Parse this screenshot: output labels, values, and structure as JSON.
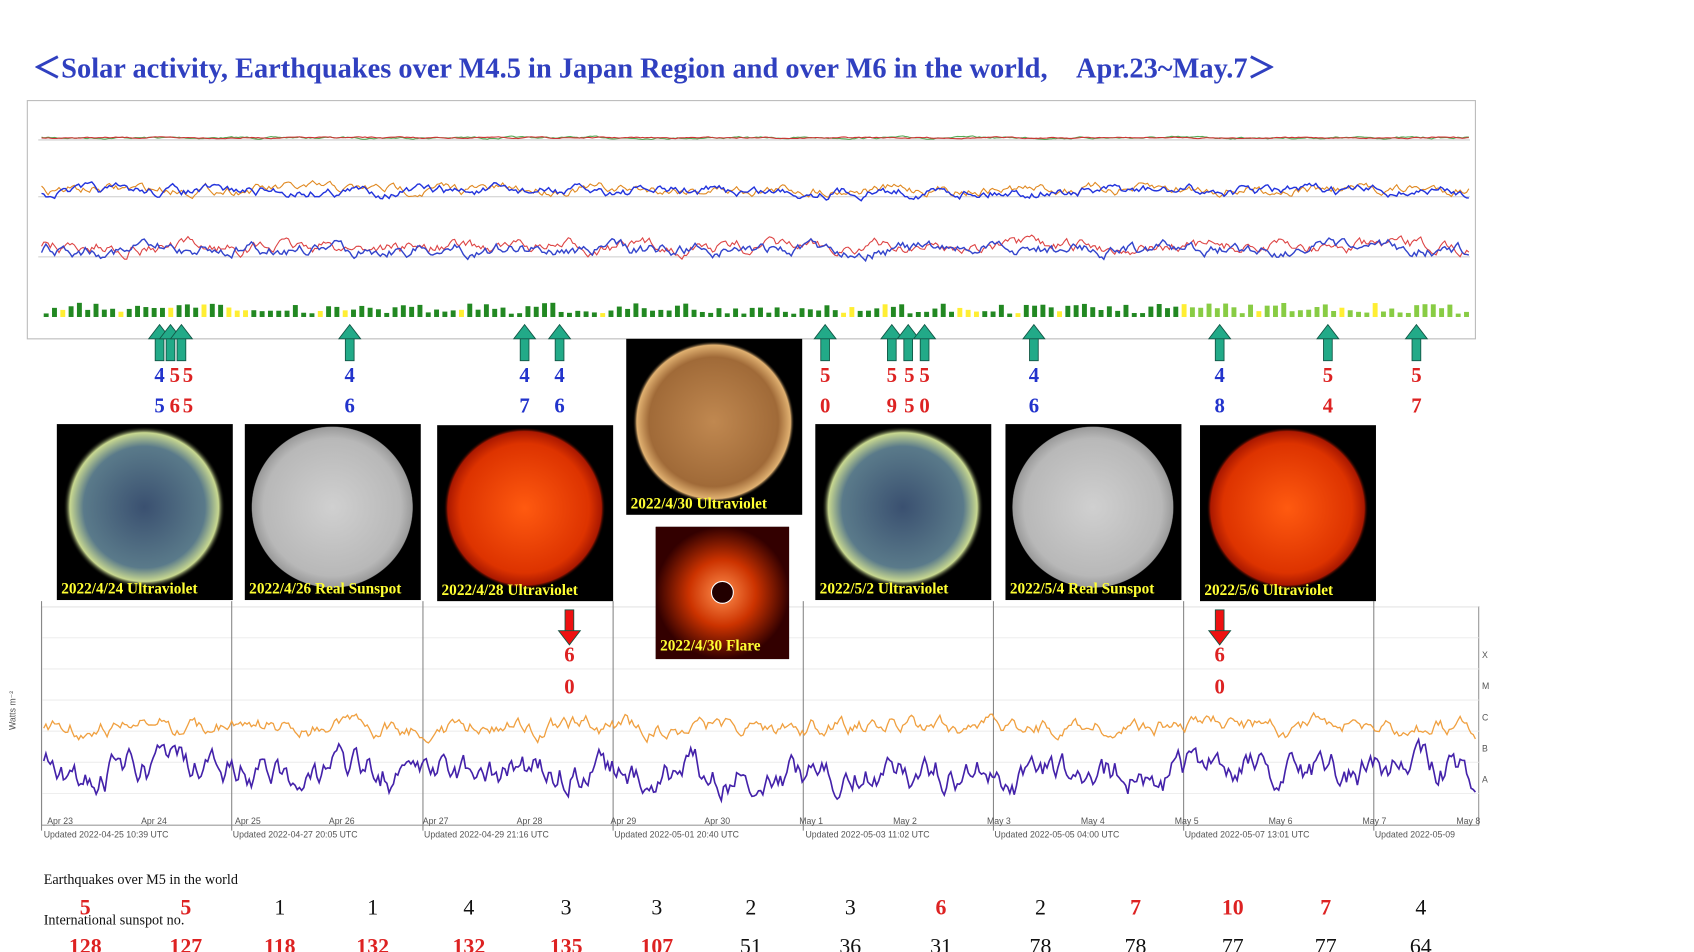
{
  "title": "＜Solar activity, Earthquakes over M4.5 in Japan Region and over M6 in the world,　Apr.23~May.7＞",
  "japan_quakes": [
    {
      "top": "4",
      "bottom": "5",
      "color": "#2233cc"
    },
    {
      "top": "5",
      "bottom": "6",
      "color": "#dd2222"
    },
    {
      "top": "5",
      "bottom": "5",
      "color": "#dd2222"
    },
    {
      "top": "4",
      "bottom": "6",
      "color": "#2233cc"
    },
    {
      "top": "4",
      "bottom": "7",
      "color": "#2233cc"
    },
    {
      "top": "4",
      "bottom": "6",
      "color": "#2233cc"
    },
    {
      "top": "5",
      "bottom": "0",
      "color": "#dd2222"
    },
    {
      "top": "5",
      "bottom": "9",
      "color": "#dd2222"
    },
    {
      "top": "5",
      "bottom": "5",
      "color": "#dd2222"
    },
    {
      "top": "5",
      "bottom": "0",
      "color": "#dd2222"
    },
    {
      "top": "4",
      "bottom": "6",
      "color": "#2233cc"
    },
    {
      "top": "4",
      "bottom": "8",
      "color": "#2233cc"
    },
    {
      "top": "5",
      "bottom": "4",
      "color": "#dd2222"
    },
    {
      "top": "5",
      "bottom": "7",
      "color": "#dd2222"
    }
  ],
  "world_quakes": [
    {
      "top": "6",
      "bottom": "0"
    },
    {
      "top": "6",
      "bottom": "0"
    }
  ],
  "images": [
    {
      "caption": "2022/4/24 Ultraviolet"
    },
    {
      "caption": "2022/4/26 Real Sunspot"
    },
    {
      "caption": "2022/4/28 Ultraviolet"
    },
    {
      "caption": "2022/4/30 Ultraviolet"
    },
    {
      "caption": "2022/4/30 Flare"
    },
    {
      "caption": "2022/5/2 Ultraviolet"
    },
    {
      "caption": "2022/5/4 Real Sunspot"
    },
    {
      "caption": "2022/5/6 Ultraviolet"
    }
  ],
  "flux_chart": {
    "y_axis_label": "Watts m⁻²",
    "classes": [
      "X",
      "M",
      "C",
      "B",
      "A"
    ],
    "dates": [
      "Apr 23",
      "Apr 24",
      "Apr 25",
      "Apr 26",
      "Apr 27",
      "Apr 28",
      "Apr 29",
      "Apr 30",
      "May 1",
      "May 2",
      "May 3",
      "May 4",
      "May 5",
      "May 6",
      "May 7",
      "May 8"
    ],
    "updated": [
      "Updated 2022-04-25 10:39 UTC",
      "Updated 2022-04-27 20:05 UTC",
      "Updated 2022-04-29 21:16 UTC",
      "Updated 2022-05-01 20:40 UTC",
      "Updated 2022-05-03 11:02 UTC",
      "Updated 2022-05-05 04:00 UTC",
      "Updated 2022-05-07 13:01 UTC",
      "Updated 2022-05-09"
    ]
  },
  "table": {
    "earthquakes_label": "Earthquakes over M5 in the world",
    "sunspot_label": "International sunspot no.",
    "earthquakes": [
      "5",
      "5",
      "1",
      "1",
      "4",
      "3",
      "3",
      "2",
      "3",
      "6",
      "2",
      "7",
      "10",
      "7",
      "4"
    ],
    "earthquake_colors": [
      "#dd2222",
      "#dd2222",
      "#111",
      "#111",
      "#111",
      "#111",
      "#111",
      "#111",
      "#111",
      "#dd2222",
      "#111",
      "#dd2222",
      "#dd2222",
      "#dd2222",
      "#111"
    ],
    "sunspots": [
      "128",
      "127",
      "118",
      "132",
      "132",
      "135",
      "107",
      "51",
      "36",
      "31",
      "78",
      "78",
      "77",
      "77",
      "64"
    ],
    "sunspot_colors": [
      "#dd2222",
      "#dd2222",
      "#dd2222",
      "#dd2222",
      "#dd2222",
      "#dd2222",
      "#dd2222",
      "#111",
      "#111",
      "#111",
      "#111",
      "#111",
      "#111",
      "#111",
      "#111"
    ]
  }
}
